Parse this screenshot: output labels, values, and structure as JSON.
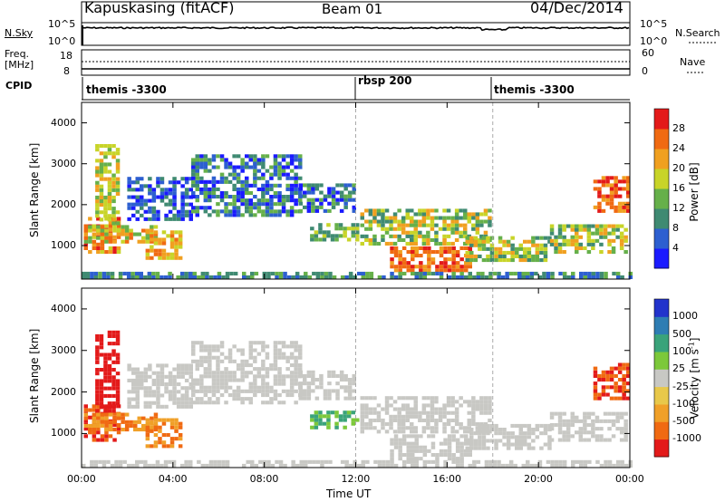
{
  "header": {
    "title": "Kapuskasing (fitACF)",
    "beam": "Beam 01",
    "date": "04/Dec/2014"
  },
  "nsky_panel": {
    "left_label": "N.Sky",
    "right_label": "N.Search",
    "left_ticks": [
      "10^5",
      "10^0"
    ],
    "right_ticks": [
      "10^5",
      "10^0"
    ]
  },
  "freq_panel": {
    "left_label": "Freq.",
    "left_unit": "[MHz]",
    "right_label": "Nave",
    "left_ticks": [
      "18",
      "8"
    ],
    "right_ticks": [
      "60",
      "0"
    ]
  },
  "cpid_panel": {
    "label": "CPID",
    "segments": [
      {
        "text": "themis -3300",
        "start_hour": 0
      },
      {
        "text": "rbsp 200",
        "start_hour": 12
      },
      {
        "text": "themis -3300",
        "start_hour": 18
      }
    ]
  },
  "chart_data": [
    {
      "type": "heatmap",
      "name": "power",
      "ylabel": "Slant Range [km]",
      "xlabel": "Time UT",
      "x_ticks": [
        "00:00",
        "04:00",
        "08:00",
        "12:00",
        "16:00",
        "20:00",
        "00:00"
      ],
      "y_ticks": [
        "1000",
        "2000",
        "3000",
        "4000"
      ],
      "ylim": [
        180,
        4500
      ],
      "xlim_hours": [
        0,
        24
      ],
      "colorbar": {
        "label": "Power [dB]",
        "ticks": [
          "4",
          "8",
          "12",
          "16",
          "20",
          "24",
          "28"
        ],
        "colors": [
          "#1a1aff",
          "#2d5fd0",
          "#3f8a72",
          "#66b04a",
          "#c8d428",
          "#f0a020",
          "#f06a12",
          "#e31a1a"
        ]
      }
    },
    {
      "type": "heatmap",
      "name": "velocity",
      "ylabel": "Slant Range [km]",
      "xlabel": "Time UT",
      "x_ticks": [
        "00:00",
        "04:00",
        "08:00",
        "12:00",
        "16:00",
        "20:00",
        "00:00"
      ],
      "y_ticks": [
        "1000",
        "2000",
        "3000",
        "4000"
      ],
      "ylim": [
        180,
        4500
      ],
      "xlim_hours": [
        0,
        24
      ],
      "colorbar": {
        "label": "Velocity [m s^-1]",
        "ticks": [
          "1000",
          "500",
          "100",
          "25",
          "-25",
          "-100",
          "-500",
          "-1000"
        ],
        "colors": [
          "#2233cc",
          "#2e7db3",
          "#3aa37a",
          "#7cc83a",
          "#c8c8c4",
          "#e8c84a",
          "#f0a028",
          "#f06a12",
          "#e31a1a"
        ]
      }
    }
  ],
  "xaxis_label": "Time UT"
}
